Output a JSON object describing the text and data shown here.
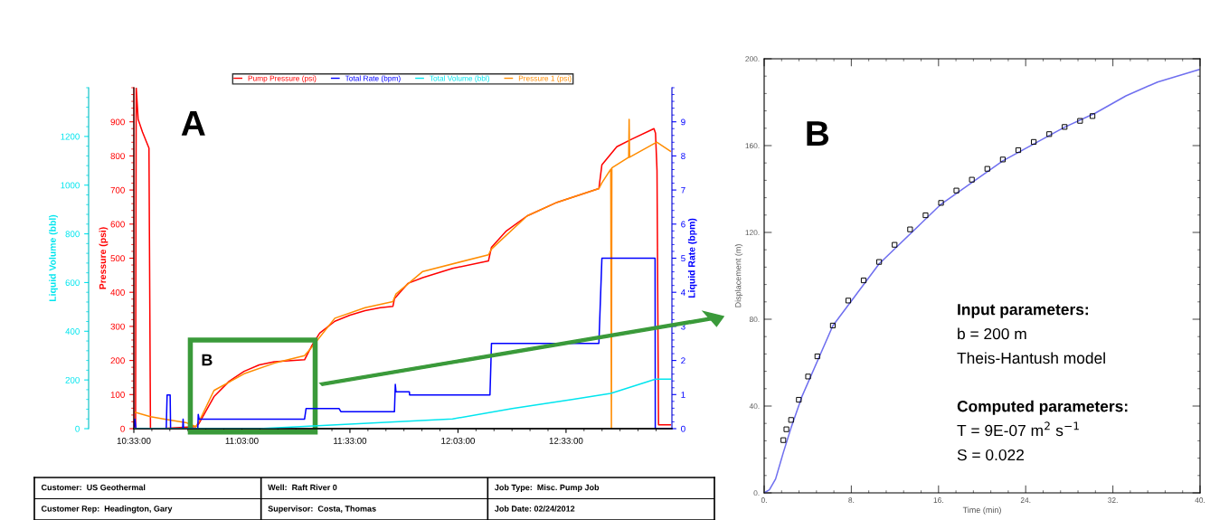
{
  "chart_data": [
    {
      "type": "line",
      "xlim": [
        10.55,
        13.04
      ],
      "xticks": [
        {
          "value": 10.55,
          "label": "10:33:00"
        },
        {
          "value": 11.05,
          "label": "11:03:00"
        },
        {
          "value": 11.55,
          "label": "11:33:00"
        },
        {
          "value": 12.05,
          "label": "12:03:00"
        },
        {
          "value": 12.55,
          "label": "12:33:00"
        }
      ],
      "ylim": [
        0,
        1000
      ],
      "yticks": [
        0,
        100,
        200,
        300,
        400,
        500,
        600,
        700,
        800,
        900
      ],
      "ylabel": "Pressure (psi)",
      "y2lim": [
        0,
        10
      ],
      "y2ticks": [
        0,
        1,
        2,
        3,
        4,
        5,
        6,
        7,
        8,
        9
      ],
      "y2label": "Liquid Rate (bpm)",
      "y3lim": [
        0,
        1400
      ],
      "y3ticks": [
        0,
        200,
        400,
        600,
        800,
        1000,
        1200
      ],
      "y3label": "Liquid Volume (bbl)",
      "legend": "top",
      "annotations": [
        "A",
        "B"
      ],
      "series": [
        {
          "name": "Pump Pressure (psi)",
          "color": "#ff0000",
          "axis": "y",
          "x": [
            10.55,
            10.558,
            10.561,
            10.57,
            10.59,
            10.62,
            10.627,
            10.669,
            10.837,
            10.851,
            10.921,
            10.991,
            11.06,
            11.13,
            11.2,
            11.34,
            11.375,
            11.41,
            11.48,
            11.55,
            11.62,
            11.69,
            11.749,
            11.756,
            11.818,
            11.887,
            12.025,
            12.191,
            12.205,
            12.274,
            12.37,
            12.509,
            12.702,
            12.716,
            12.785,
            12.854,
            12.957,
            12.964,
            12.971,
            12.978,
            13.033
          ],
          "values": [
            0,
            0,
            1000,
            907,
            870,
            823,
            0,
            0,
            6,
            15,
            94,
            139,
            168,
            187,
            196,
            202,
            245,
            280,
            315,
            333,
            346,
            355,
            359,
            381,
            426,
            443,
            470,
            492,
            532,
            580,
            624,
            664,
            704,
            774,
            827,
            849,
            880,
            867,
            757,
            11,
            11
          ]
        },
        {
          "name": "Total Rate (bpm)",
          "color": "#0000ff",
          "axis": "y2",
          "x": [
            10.55,
            10.555,
            10.56,
            10.7,
            10.704,
            10.718,
            10.72,
            10.776,
            10.778,
            10.78,
            10.846,
            10.848,
            10.852,
            11.34,
            11.347,
            11.5,
            11.508,
            11.756,
            11.76,
            11.763,
            11.825,
            11.826,
            12.198,
            12.205,
            12.702,
            12.716,
            12.962,
            12.963,
            13.033
          ],
          "values": [
            0,
            0.28,
            0,
            0,
            0.99,
            0.99,
            0,
            0,
            0.28,
            0,
            0,
            0.42,
            0.28,
            0.28,
            0.59,
            0.59,
            0.5,
            0.5,
            1.3,
            1.08,
            1.08,
            0.99,
            0.99,
            2.5,
            2.5,
            5.0,
            5.0,
            0,
            0
          ]
        },
        {
          "name": "Total Volume (bbl)",
          "color": "#00e5ee",
          "axis": "y3",
          "x": [
            10.55,
            11.13,
            11.34,
            11.611,
            12.025,
            12.301,
            12.578,
            12.757,
            12.964,
            13.033
          ],
          "values": [
            0,
            0,
            9,
            21,
            40,
            83,
            120,
            145,
            203,
            203
          ]
        },
        {
          "name": "Pressure 1 (psi)",
          "color": "#ff8c00",
          "axis": "y",
          "x": [
            10.55,
            10.627,
            10.711,
            10.795,
            10.837,
            10.851,
            10.921,
            11.06,
            11.2,
            11.34,
            11.375,
            11.48,
            11.62,
            11.749,
            11.763,
            11.887,
            12.191,
            12.205,
            12.37,
            12.509,
            12.702,
            12.716,
            12.757,
            12.76,
            12.762,
            12.84,
            12.842,
            12.844,
            12.957,
            12.971,
            13.033
          ],
          "values": [
            49,
            35,
            26,
            17,
            6,
            20,
            112,
            161,
            192,
            214,
            240,
            324,
            355,
            373,
            395,
            461,
            510,
            527,
            624,
            664,
            704,
            721,
            761,
            0,
            765,
            796,
            907,
            796,
            836,
            840,
            814
          ]
        }
      ]
    },
    {
      "type": "scatter",
      "xlim": [
        0,
        40
      ],
      "xticks": [
        {
          "value": 0,
          "label": "0."
        },
        {
          "value": 8,
          "label": "8."
        },
        {
          "value": 16,
          "label": "16."
        },
        {
          "value": 24,
          "label": "24."
        },
        {
          "value": 32,
          "label": "32."
        },
        {
          "value": 40,
          "label": "40."
        }
      ],
      "ylim": [
        0,
        200
      ],
      "yticks": [
        {
          "value": 0,
          "label": "0."
        },
        {
          "value": 40,
          "label": "40."
        },
        {
          "value": 80,
          "label": "80."
        },
        {
          "value": 120,
          "label": "120."
        },
        {
          "value": 160,
          "label": "160."
        },
        {
          "value": 200,
          "label": "200."
        }
      ],
      "xlabel": "Time (min)",
      "ylabel": "Displacement (m)",
      "annotations": [
        "B",
        "Input parameters:",
        "b = 200 m",
        "Theis-Hantush model",
        "Computed parameters:",
        "T = 9E-07 m$^{2}$ s$^{−1}$",
        "S = 0.022"
      ],
      "series": [
        {
          "color": "#000000",
          "marker": "square",
          "x": [
            1.76,
            2.04,
            2.47,
            3.18,
            4.03,
            4.88,
            6.3,
            7.72,
            9.13,
            10.55,
            11.97,
            13.39,
            14.81,
            16.23,
            17.64,
            19.06,
            20.48,
            21.9,
            23.32,
            24.74,
            26.16,
            27.57,
            28.99,
            30.13
          ],
          "values": [
            24.3,
            29.3,
            33.6,
            42.9,
            53.6,
            62.9,
            77.1,
            88.6,
            97.9,
            106.4,
            114.3,
            121.4,
            127.9,
            133.6,
            139.3,
            144.3,
            149.3,
            153.6,
            157.9,
            161.7,
            165.3,
            168.6,
            171.4,
            173.6
          ]
        },
        {
          "type": "line",
          "color": "#6f6fef",
          "x": [
            0,
            0.48,
            1.05,
            1.76,
            2.47,
            3.46,
            6.3,
            10.55,
            16.23,
            21.9,
            27.57,
            30.4,
            33.2,
            36.1,
            39.9
          ],
          "values": [
            0,
            1.4,
            6.4,
            18.6,
            30,
            44.3,
            77,
            105.5,
            133,
            153,
            168.5,
            175,
            182.9,
            189.3,
            195
          ]
        }
      ]
    },
    {
      "type": "other",
      "annotations": [
        "Customer:  US Geothermal",
        "Well:  Raft River 0",
        "Job Type:  Misc. Pump Job",
        "Customer Rep:  Headington, Gary",
        "Supervisor:  Costa, Thomas",
        "Job Date: 02/24/2012"
      ]
    }
  ]
}
